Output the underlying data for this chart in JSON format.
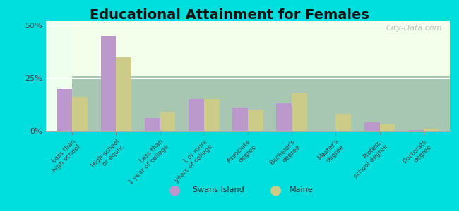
{
  "title": "Educational Attainment for Females",
  "categories": [
    "Less than\nhigh school",
    "High school\nor equiv.",
    "Less than\n1 year of college",
    "1 or more\nyears of college",
    "Associate\ndegree",
    "Bachelor's\ndegree",
    "Master's\ndegree",
    "Profess.\nschool degree",
    "Doctorate\ndegree"
  ],
  "swans_island": [
    20.0,
    45.0,
    6.0,
    15.0,
    11.0,
    13.0,
    0.0,
    4.0,
    0.5
  ],
  "maine": [
    16.0,
    35.0,
    9.0,
    15.0,
    10.0,
    18.0,
    8.0,
    3.0,
    1.0
  ],
  "swans_color": "#bb99cc",
  "maine_color": "#cccc88",
  "background_chart": "#eeffee",
  "background_outer": "#00dddd",
  "ylim": [
    0,
    52
  ],
  "yticks": [
    0,
    25,
    50
  ],
  "ytick_labels": [
    "0%",
    "25%",
    "50%"
  ],
  "title_fontsize": 14,
  "legend_swans": "Swans Island",
  "legend_maine": "Maine",
  "watermark": "City-Data.com"
}
